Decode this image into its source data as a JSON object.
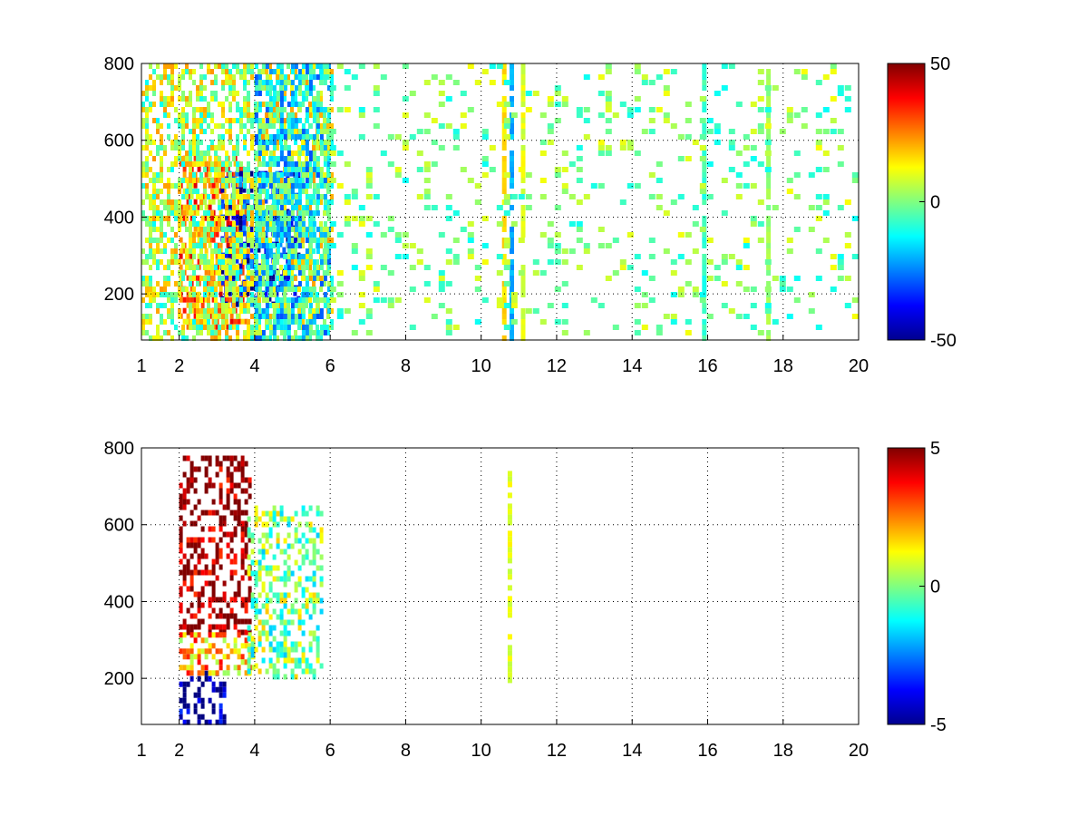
{
  "chart_data": [
    {
      "type": "heatmap",
      "title": "",
      "xlabel": "",
      "ylabel": "",
      "xlim": [
        1,
        20
      ],
      "ylim": [
        80,
        800
      ],
      "x_ticks": [
        1,
        2,
        4,
        6,
        8,
        10,
        12,
        14,
        16,
        18,
        20
      ],
      "x_tick_labels": [
        "1",
        "2",
        "4",
        "6",
        "8",
        "10",
        "12",
        "14",
        "16",
        "18",
        "20"
      ],
      "y_ticks": [
        200,
        400,
        600,
        800
      ],
      "y_tick_labels": [
        "200",
        "400",
        "600",
        "800"
      ],
      "grid": true,
      "colormap": "jet",
      "colorbar": {
        "min": -50,
        "max": 50,
        "ticks": [
          50,
          0,
          -50
        ],
        "tick_labels": [
          "50",
          "0",
          "-50"
        ]
      },
      "clusters": [
        {
          "x": [
            2.0,
            3.8
          ],
          "y": [
            120,
            560
          ],
          "value": 25
        },
        {
          "x": [
            3.1,
            5.2
          ],
          "y": [
            180,
            520
          ],
          "value": -35
        },
        {
          "x": [
            1.0,
            6.0
          ],
          "y": [
            80,
            800
          ],
          "value": 5
        },
        {
          "x": [
            4.0,
            6.0
          ],
          "y": [
            80,
            800
          ],
          "value": -12
        }
      ],
      "stripes": [
        {
          "x": 10.6,
          "value": 15
        },
        {
          "x": 10.8,
          "value": -20
        },
        {
          "x": 11.1,
          "value": 10
        },
        {
          "x": 17.6,
          "value": 2
        },
        {
          "x": 15.9,
          "value": -8
        }
      ],
      "scatter_density": 0.16,
      "scatter_range": [
        -12,
        12
      ]
    },
    {
      "type": "heatmap",
      "title": "",
      "xlabel": "",
      "ylabel": "",
      "xlim": [
        1,
        20
      ],
      "ylim": [
        80,
        800
      ],
      "x_ticks": [
        1,
        2,
        4,
        6,
        8,
        10,
        12,
        14,
        16,
        18,
        20
      ],
      "x_tick_labels": [
        "1",
        "2",
        "4",
        "6",
        "8",
        "10",
        "12",
        "14",
        "16",
        "18",
        "20"
      ],
      "y_ticks": [
        200,
        400,
        600,
        800
      ],
      "y_tick_labels": [
        "200",
        "400",
        "600",
        "800"
      ],
      "grid": true,
      "colormap": "jet",
      "colorbar": {
        "min": -5,
        "max": 5,
        "ticks": [
          5,
          0,
          -5
        ],
        "tick_labels": [
          "5",
          "0",
          "-5"
        ]
      },
      "clusters": [
        {
          "x": [
            2.0,
            3.9
          ],
          "y": [
            320,
            780
          ],
          "value": 5
        },
        {
          "x": [
            2.0,
            3.2
          ],
          "y": [
            90,
            220
          ],
          "value": -5
        },
        {
          "x": [
            2.0,
            4.0
          ],
          "y": [
            220,
            320
          ],
          "value": 2
        },
        {
          "x": [
            3.8,
            5.8
          ],
          "y": [
            200,
            650
          ],
          "value": 0
        }
      ],
      "stripes": [
        {
          "x": 10.75,
          "value": 1,
          "y": [
            200,
            740
          ]
        }
      ],
      "scatter_density": 0,
      "scatter_range": [
        0,
        0
      ]
    }
  ]
}
